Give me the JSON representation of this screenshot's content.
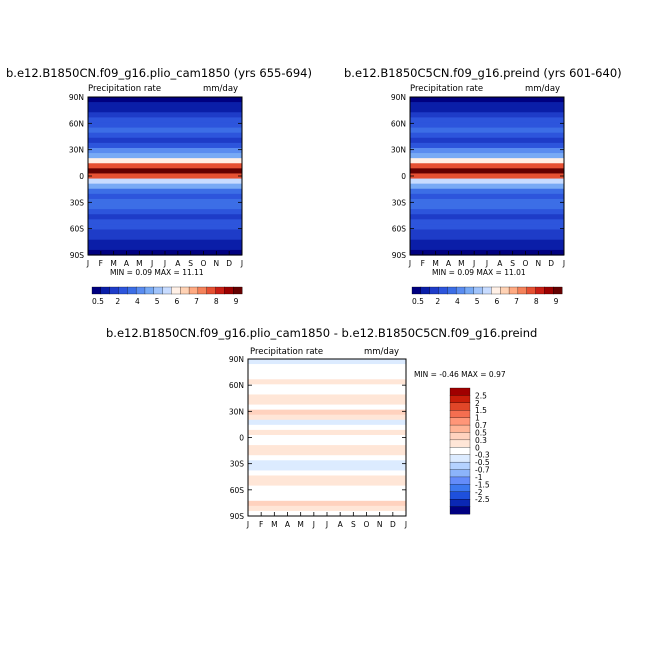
{
  "panels": [
    {
      "title": "b.e12.B1850CN.f09_g16.plio_cam1850 (yrs 655-694)",
      "variable": "Precipitation rate",
      "units": "mm/day",
      "stats": "MIN =    0.09  MAX =    11.11",
      "palette": [
        "#000080",
        "#0a1ea8",
        "#1e3cc8",
        "#2d55dc",
        "#3c6ee6",
        "#5a8cf0",
        "#78aaf5",
        "#a0c3fa",
        "#c8dcff",
        "#fff0e6",
        "#ffd2b4",
        "#ffaa82",
        "#f5825a",
        "#e65032",
        "#c81e14",
        "#9b0000",
        "#640000"
      ],
      "bands": [
        0,
        1,
        1,
        2,
        3,
        3,
        4,
        3,
        2,
        3,
        5,
        6,
        9,
        13,
        16,
        13,
        8,
        6,
        4,
        3,
        4,
        4,
        3,
        2,
        3,
        3,
        2,
        2,
        1,
        1,
        0
      ]
    },
    {
      "title": "b.e12.B1850C5CN.f09_g16.preind (yrs 601-640)",
      "variable": "Precipitation rate",
      "units": "mm/day",
      "stats": "MIN =    0.09  MAX =    11.01",
      "palette": [
        "#000080",
        "#0a1ea8",
        "#1e3cc8",
        "#2d55dc",
        "#3c6ee6",
        "#5a8cf0",
        "#78aaf5",
        "#a0c3fa",
        "#c8dcff",
        "#fff0e6",
        "#ffd2b4",
        "#ffaa82",
        "#f5825a",
        "#e65032",
        "#c81e14",
        "#9b0000",
        "#640000"
      ],
      "bands": [
        0,
        1,
        1,
        2,
        3,
        3,
        4,
        3,
        2,
        3,
        5,
        6,
        9,
        13,
        16,
        13,
        8,
        6,
        4,
        3,
        4,
        4,
        3,
        2,
        3,
        3,
        2,
        2,
        1,
        1,
        0
      ]
    },
    {
      "title": "b.e12.B1850CN.f09_g16.plio_cam1850 - b.e12.B1850C5CN.f09_g16.preind",
      "variable": "Precipitation rate",
      "units": "mm/day",
      "stats": "MIN =   -0.46  MAX =    0.97",
      "palette": [
        "#000080",
        "#0a28b4",
        "#1e50dc",
        "#3c78f0",
        "#648cfa",
        "#8cb4fa",
        "#b4d2ff",
        "#dcebff",
        "#ffffff",
        "#ffe6d7",
        "#ffd2be",
        "#ffb496",
        "#ff9678",
        "#f56e50",
        "#e14628",
        "#c81e0a",
        "#a00000"
      ],
      "bands": [
        7,
        8,
        8,
        8,
        9,
        8,
        8,
        9,
        9,
        8,
        10,
        9,
        7,
        8,
        9,
        8,
        8,
        9,
        9,
        8,
        7,
        7,
        8,
        9,
        9,
        8,
        8,
        8,
        10,
        9,
        8
      ]
    }
  ],
  "chart_data": [
    {
      "type": "heatmap",
      "title": "b.e12.B1850CN.f09_g16.plio_cam1850 (yrs 655-694)",
      "xlabel": "",
      "ylabel": "",
      "variable": "Precipitation rate",
      "units": "mm/day",
      "x_ticks": [
        "J",
        "F",
        "M",
        "A",
        "M",
        "J",
        "J",
        "A",
        "S",
        "O",
        "N",
        "D",
        "J"
      ],
      "y_ticks": [
        "90N",
        "60N",
        "30N",
        "0",
        "30S",
        "60S",
        "90S"
      ],
      "colorbar_labels": [
        "0.5",
        "2",
        "4",
        "5",
        "6",
        "7",
        "8",
        "9"
      ],
      "min": 0.09,
      "max": 11.11
    },
    {
      "type": "heatmap",
      "title": "b.e12.B1850C5CN.f09_g16.preind (yrs 601-640)",
      "xlabel": "",
      "ylabel": "",
      "variable": "Precipitation rate",
      "units": "mm/day",
      "x_ticks": [
        "J",
        "F",
        "M",
        "A",
        "M",
        "J",
        "J",
        "A",
        "S",
        "O",
        "N",
        "D",
        "J"
      ],
      "y_ticks": [
        "90N",
        "60N",
        "30N",
        "0",
        "30S",
        "60S",
        "90S"
      ],
      "colorbar_labels": [
        "0.5",
        "2",
        "4",
        "5",
        "6",
        "7",
        "8",
        "9"
      ],
      "min": 0.09,
      "max": 11.01
    },
    {
      "type": "heatmap",
      "title": "b.e12.B1850CN.f09_g16.plio_cam1850 - b.e12.B1850C5CN.f09_g16.preind",
      "xlabel": "",
      "ylabel": "",
      "variable": "Precipitation rate",
      "units": "mm/day",
      "x_ticks": [
        "J",
        "F",
        "M",
        "A",
        "M",
        "J",
        "J",
        "A",
        "S",
        "O",
        "N",
        "D",
        "J"
      ],
      "y_ticks": [
        "90N",
        "60N",
        "30N",
        "0",
        "30S",
        "60S",
        "90S"
      ],
      "colorbar_labels": [
        "2.5",
        "2",
        "1.5",
        "1",
        "0.7",
        "0.5",
        "0.3",
        "0",
        "-0.3",
        "-0.5",
        "-0.7",
        "-1",
        "-1.5",
        "-2",
        "-2.5"
      ],
      "min": -0.46,
      "max": 0.97
    }
  ]
}
